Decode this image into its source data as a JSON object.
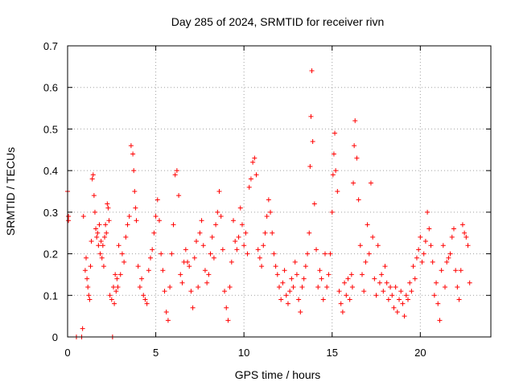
{
  "chart_data": {
    "type": "scatter",
    "title": "Day 285 of 2024, SRMTID for receiver rivn",
    "xlabel": "GPS time / hours",
    "ylabel": "SRMTID / TECUs",
    "xlim": [
      0,
      24
    ],
    "ylim": [
      0,
      0.7
    ],
    "xticks": [
      0,
      5,
      10,
      15,
      20
    ],
    "xtick_labels": [
      "0",
      "5",
      "10",
      "15",
      "20"
    ],
    "yticks": [
      0,
      0.1,
      0.2,
      0.3,
      0.4,
      0.5,
      0.6,
      0.7
    ],
    "ytick_labels": [
      "0",
      "0.1",
      "0.2",
      "0.3",
      "0.4",
      "0.5",
      "0.6",
      "0.7"
    ],
    "grid": true,
    "marker": "plus",
    "color": "#ff0000",
    "series": [
      {
        "name": "SRMTID",
        "x": [
          0.0,
          0.05,
          0.05,
          0.5,
          0.8,
          0.85,
          0.9,
          1.0,
          1.05,
          1.1,
          1.15,
          1.2,
          1.25,
          1.3,
          1.35,
          1.4,
          1.45,
          1.5,
          1.55,
          1.6,
          1.65,
          1.7,
          1.75,
          1.8,
          1.85,
          1.9,
          1.95,
          2.0,
          2.05,
          2.1,
          2.15,
          2.2,
          2.25,
          2.3,
          2.35,
          2.4,
          2.5,
          2.55,
          2.6,
          2.65,
          2.7,
          2.75,
          2.8,
          2.85,
          2.9,
          3.0,
          3.1,
          3.2,
          3.3,
          3.4,
          3.5,
          3.6,
          3.7,
          3.75,
          3.8,
          3.85,
          3.9,
          4.0,
          4.1,
          4.2,
          4.3,
          4.4,
          4.5,
          4.6,
          4.7,
          4.8,
          4.9,
          5.0,
          5.1,
          5.2,
          5.3,
          5.4,
          5.5,
          5.6,
          5.7,
          5.8,
          5.9,
          6.0,
          6.1,
          6.2,
          6.3,
          6.4,
          6.5,
          6.6,
          6.7,
          6.8,
          6.9,
          7.0,
          7.1,
          7.2,
          7.3,
          7.4,
          7.5,
          7.6,
          7.7,
          7.8,
          7.9,
          8.0,
          8.1,
          8.2,
          8.3,
          8.4,
          8.5,
          8.6,
          8.7,
          8.8,
          8.9,
          9.0,
          9.1,
          9.2,
          9.3,
          9.4,
          9.5,
          9.6,
          9.7,
          9.8,
          9.9,
          10.0,
          10.1,
          10.2,
          10.3,
          10.4,
          10.5,
          10.6,
          10.7,
          10.8,
          10.9,
          11.0,
          11.1,
          11.2,
          11.3,
          11.4,
          11.5,
          11.6,
          11.7,
          11.8,
          11.9,
          12.0,
          12.1,
          12.2,
          12.3,
          12.4,
          12.5,
          12.6,
          12.7,
          12.8,
          12.9,
          13.0,
          13.1,
          13.2,
          13.3,
          13.4,
          13.5,
          13.6,
          13.7,
          13.75,
          13.8,
          13.85,
          13.9,
          14.0,
          14.1,
          14.2,
          14.3,
          14.4,
          14.5,
          14.6,
          14.7,
          14.8,
          14.9,
          15.0,
          15.05,
          15.1,
          15.15,
          15.2,
          15.3,
          15.4,
          15.5,
          15.6,
          15.7,
          15.8,
          15.9,
          16.0,
          16.1,
          16.15,
          16.2,
          16.25,
          16.3,
          16.4,
          16.5,
          16.6,
          16.7,
          16.8,
          16.9,
          17.0,
          17.1,
          17.2,
          17.3,
          17.4,
          17.5,
          17.6,
          17.7,
          17.8,
          17.9,
          18.0,
          18.1,
          18.2,
          18.3,
          18.4,
          18.5,
          18.6,
          18.7,
          18.8,
          18.9,
          19.0,
          19.1,
          19.2,
          19.3,
          19.4,
          19.5,
          19.6,
          19.7,
          19.8,
          19.9,
          20.0,
          20.1,
          20.2,
          20.3,
          20.4,
          20.5,
          20.6,
          20.7,
          20.8,
          20.9,
          21.0,
          21.1,
          21.2,
          21.3,
          21.4,
          21.5,
          21.6,
          21.7,
          21.8,
          21.9,
          22.0,
          22.1,
          22.2,
          22.3,
          22.4,
          22.5,
          22.6,
          22.7,
          22.8
        ],
        "y": [
          0.35,
          0.29,
          0.28,
          0.0,
          0.0,
          0.02,
          0.29,
          0.16,
          0.19,
          0.14,
          0.12,
          0.1,
          0.09,
          0.17,
          0.23,
          0.38,
          0.39,
          0.34,
          0.3,
          0.26,
          0.24,
          0.25,
          0.22,
          0.27,
          0.2,
          0.23,
          0.19,
          0.22,
          0.17,
          0.24,
          0.27,
          0.25,
          0.32,
          0.31,
          0.28,
          0.1,
          0.09,
          0.0,
          0.12,
          0.08,
          0.15,
          0.11,
          0.14,
          0.12,
          0.22,
          0.15,
          0.2,
          0.18,
          0.24,
          0.27,
          0.29,
          0.46,
          0.44,
          0.4,
          0.35,
          0.31,
          0.28,
          0.17,
          0.12,
          0.14,
          0.1,
          0.09,
          0.08,
          0.16,
          0.19,
          0.21,
          0.25,
          0.29,
          0.33,
          0.28,
          0.2,
          0.16,
          0.11,
          0.06,
          0.04,
          0.12,
          0.2,
          0.27,
          0.39,
          0.4,
          0.34,
          0.15,
          0.13,
          0.18,
          0.21,
          0.18,
          0.17,
          0.11,
          0.07,
          0.19,
          0.23,
          0.12,
          0.25,
          0.28,
          0.22,
          0.16,
          0.13,
          0.15,
          0.2,
          0.24,
          0.19,
          0.27,
          0.3,
          0.35,
          0.29,
          0.21,
          0.11,
          0.07,
          0.04,
          0.12,
          0.18,
          0.28,
          0.23,
          0.21,
          0.24,
          0.31,
          0.27,
          0.22,
          0.25,
          0.2,
          0.36,
          0.38,
          0.42,
          0.43,
          0.39,
          0.21,
          0.19,
          0.17,
          0.22,
          0.25,
          0.29,
          0.33,
          0.3,
          0.25,
          0.2,
          0.17,
          0.15,
          0.12,
          0.09,
          0.13,
          0.16,
          0.1,
          0.08,
          0.11,
          0.14,
          0.12,
          0.18,
          0.15,
          0.09,
          0.06,
          0.12,
          0.14,
          0.17,
          0.2,
          0.25,
          0.41,
          0.53,
          0.64,
          0.47,
          0.32,
          0.21,
          0.12,
          0.16,
          0.14,
          0.09,
          0.2,
          0.12,
          0.15,
          0.2,
          0.3,
          0.39,
          0.44,
          0.49,
          0.4,
          0.35,
          0.11,
          0.08,
          0.06,
          0.13,
          0.1,
          0.14,
          0.09,
          0.15,
          0.12,
          0.37,
          0.46,
          0.52,
          0.43,
          0.33,
          0.22,
          0.15,
          0.11,
          0.18,
          0.27,
          0.2,
          0.37,
          0.24,
          0.14,
          0.1,
          0.22,
          0.13,
          0.15,
          0.11,
          0.17,
          0.13,
          0.09,
          0.12,
          0.1,
          0.07,
          0.12,
          0.06,
          0.09,
          0.11,
          0.08,
          0.05,
          0.1,
          0.09,
          0.13,
          0.11,
          0.17,
          0.14,
          0.19,
          0.21,
          0.24,
          0.18,
          0.2,
          0.23,
          0.3,
          0.26,
          0.22,
          0.18,
          0.1,
          0.13,
          0.08,
          0.04,
          0.16,
          0.22,
          0.12,
          0.18,
          0.19,
          0.2,
          0.24,
          0.26,
          0.16,
          0.12,
          0.09,
          0.16,
          0.27,
          0.25,
          0.24,
          0.22,
          0.13
        ]
      }
    ]
  }
}
